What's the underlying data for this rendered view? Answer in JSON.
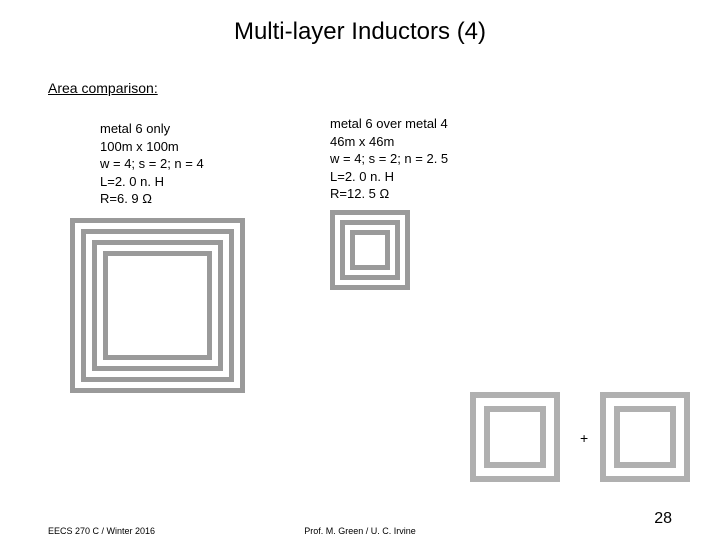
{
  "title": "Multi-layer Inductors (4)",
  "subtitle": "Area comparison:",
  "left_params": {
    "l1": "metal 6 only",
    "l2": "100m x 100m",
    "l3": "w = 4; s = 2; n = 4",
    "l4": "L=2. 0 n. H",
    "l5": "R=6. 9 Ω"
  },
  "right_params": {
    "l1": "metal 6 over metal 4",
    "l2": "46m x 46m",
    "l3": "w = 4; s = 2; n = 2. 5",
    "l4": "L=2. 0 n. H",
    "l5": "R=12. 5 Ω"
  },
  "big_spiral": {
    "size": 175,
    "turns": 4,
    "stroke": "#9a9a9a",
    "stroke_width": 5,
    "gap": 11
  },
  "small_spiral": {
    "size": 80,
    "turns": 3,
    "stroke": "#a0a0a0",
    "stroke_width": 5,
    "gap": 10
  },
  "decomp_spiral": {
    "size": 90,
    "turns": 2,
    "stroke": "#b0b0b0",
    "stroke_width": 6,
    "gap": 14
  },
  "plus": "+",
  "footer_left": "EECS 270 C / Winter 2016",
  "footer_center": "Prof. M. Green / U. C. Irvine",
  "page_num": "28"
}
